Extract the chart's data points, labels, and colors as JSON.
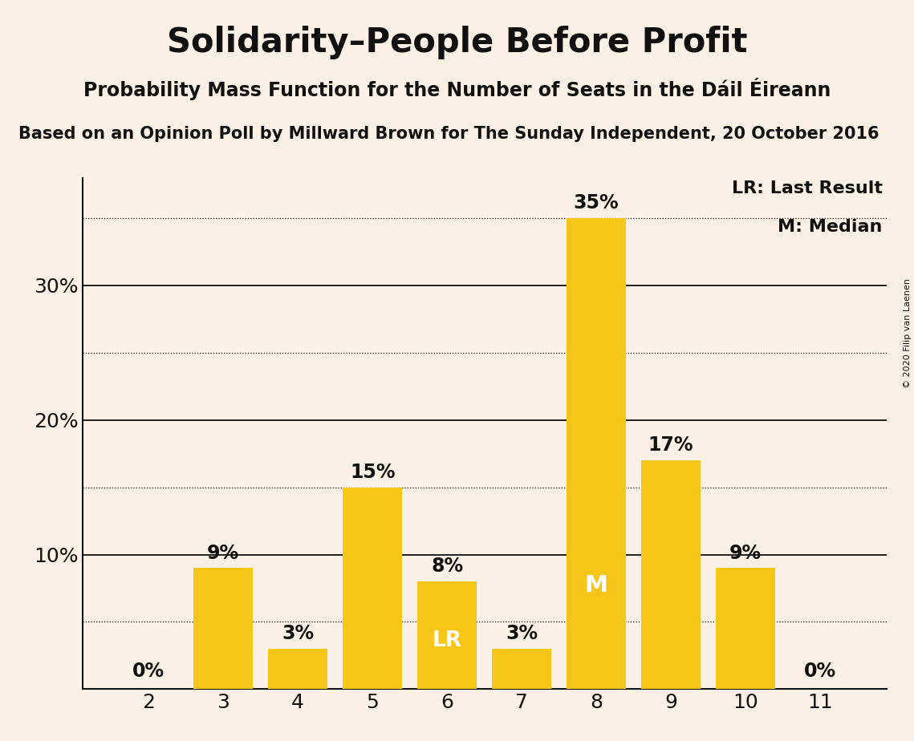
{
  "title": "Solidarity–People Before Profit",
  "subtitle": "Probability Mass Function for the Number of Seats in the Dáil Éireann",
  "source_line": "Based on an Opinion Poll by Millward Brown for The Sunday Independent, 20 October 2016",
  "copyright": "© 2020 Filip van Laenen",
  "categories": [
    2,
    3,
    4,
    5,
    6,
    7,
    8,
    9,
    10,
    11
  ],
  "values": [
    0,
    9,
    3,
    15,
    8,
    3,
    35,
    17,
    9,
    0
  ],
  "bar_color": "#F5C518",
  "background_color": "#FAF0E6",
  "last_result_bar": 6,
  "median_bar": 8,
  "lr_label": "LR",
  "m_label": "M",
  "legend_lr": "LR: Last Result",
  "legend_m": "M: Median",
  "ylabel_ticks": [
    10,
    20,
    30
  ],
  "solid_gridlines": [
    10,
    20,
    30
  ],
  "dotted_gridlines": [
    5,
    15,
    25,
    35
  ],
  "ylim": [
    0,
    38
  ],
  "title_fontsize": 30,
  "subtitle_fontsize": 17,
  "source_fontsize": 15,
  "bar_label_fontsize": 17,
  "axis_tick_fontsize": 18,
  "legend_fontsize": 16,
  "copyright_fontsize": 8,
  "text_color": "#111111",
  "white": "#FFFFFF"
}
